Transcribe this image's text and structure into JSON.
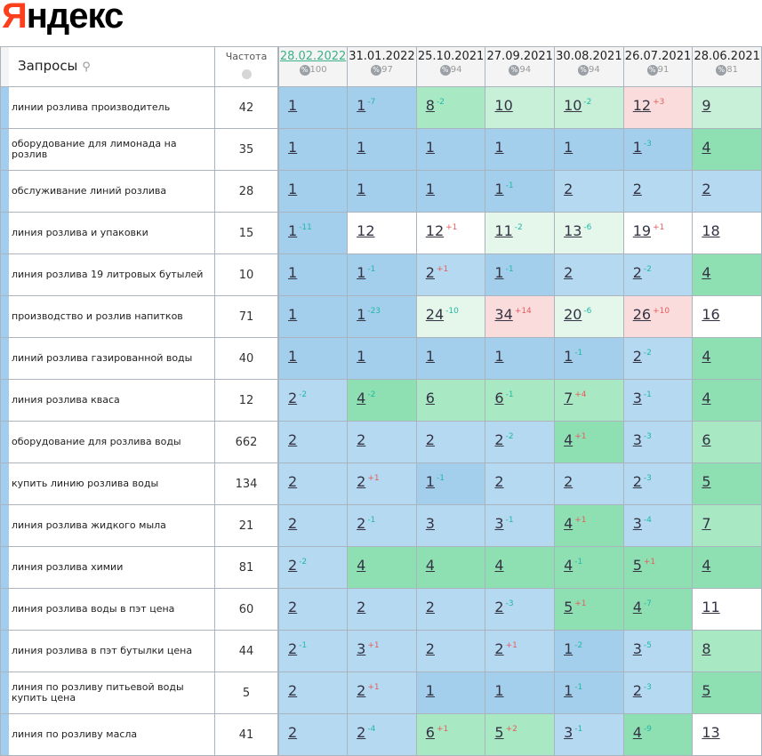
{
  "logo": "Яндекс",
  "header": {
    "queries_label": "Запросы",
    "freq_label": "Частота",
    "dates": [
      {
        "date": "28.02.2022",
        "visibility": "100",
        "current": true
      },
      {
        "date": "31.01.2022",
        "visibility": "97"
      },
      {
        "date": "25.10.2021",
        "visibility": "94"
      },
      {
        "date": "27.09.2021",
        "visibility": "94"
      },
      {
        "date": "30.08.2021",
        "visibility": "94"
      },
      {
        "date": "26.07.2021",
        "visibility": "91"
      },
      {
        "date": "28.06.2021",
        "visibility": "81"
      }
    ],
    "percent_icon": "%"
  },
  "colors": {
    "b1": "#a3cfec",
    "b2": "#b5d9f1",
    "g1": "#8ee0b3",
    "g2": "#a8e9c4",
    "g3": "#c8f0d9",
    "g4": "#e4f7ea",
    "r": "#fbdcdc",
    "w": "#ffffff",
    "improved": "#1fb8a6",
    "worsened": "#e85b5b"
  },
  "rows": [
    {
      "query": "линии розлива производитель",
      "freq": "42",
      "cells": [
        [
          "1",
          "",
          "b1"
        ],
        [
          "1",
          "-7",
          "b1"
        ],
        [
          "8",
          "-2",
          "g2"
        ],
        [
          "10",
          "",
          "g3"
        ],
        [
          "10",
          "-2",
          "g3"
        ],
        [
          "12",
          "+3",
          "r"
        ],
        [
          "9",
          "",
          "g3"
        ]
      ]
    },
    {
      "query": "оборудование для лимонада на розлив",
      "freq": "35",
      "cells": [
        [
          "1",
          "",
          "b1"
        ],
        [
          "1",
          "",
          "b1"
        ],
        [
          "1",
          "",
          "b1"
        ],
        [
          "1",
          "",
          "b1"
        ],
        [
          "1",
          "",
          "b1"
        ],
        [
          "1",
          "-3",
          "b1"
        ],
        [
          "4",
          "",
          "g1"
        ]
      ]
    },
    {
      "query": "обслуживание линий розлива",
      "freq": "28",
      "cells": [
        [
          "1",
          "",
          "b1"
        ],
        [
          "1",
          "",
          "b1"
        ],
        [
          "1",
          "",
          "b1"
        ],
        [
          "1",
          "-1",
          "b1"
        ],
        [
          "2",
          "",
          "b2"
        ],
        [
          "2",
          "",
          "b2"
        ],
        [
          "2",
          "",
          "b2"
        ]
      ]
    },
    {
      "query": "линия розлива и упаковки",
      "freq": "15",
      "cells": [
        [
          "1",
          "-11",
          "b1"
        ],
        [
          "12",
          "",
          "w"
        ],
        [
          "12",
          "+1",
          "w"
        ],
        [
          "11",
          "-2",
          "g4"
        ],
        [
          "13",
          "-6",
          "g4"
        ],
        [
          "19",
          "+1",
          "w"
        ],
        [
          "18",
          "",
          "w"
        ]
      ]
    },
    {
      "query": "линия розлива 19 литровых бутылей",
      "freq": "10",
      "cells": [
        [
          "1",
          "",
          "b1"
        ],
        [
          "1",
          "-1",
          "b1"
        ],
        [
          "2",
          "+1",
          "b2"
        ],
        [
          "1",
          "-1",
          "b1"
        ],
        [
          "2",
          "",
          "b2"
        ],
        [
          "2",
          "-2",
          "b2"
        ],
        [
          "4",
          "",
          "g1"
        ]
      ]
    },
    {
      "query": "производство и розлив напитков",
      "freq": "71",
      "cells": [
        [
          "1",
          "",
          "b1"
        ],
        [
          "1",
          "-23",
          "b1"
        ],
        [
          "24",
          "-10",
          "g4"
        ],
        [
          "34",
          "+14",
          "r"
        ],
        [
          "20",
          "-6",
          "g4"
        ],
        [
          "26",
          "+10",
          "r"
        ],
        [
          "16",
          "",
          "w"
        ]
      ]
    },
    {
      "query": "линий розлива газированной воды",
      "freq": "40",
      "cells": [
        [
          "1",
          "",
          "b1"
        ],
        [
          "1",
          "",
          "b1"
        ],
        [
          "1",
          "",
          "b1"
        ],
        [
          "1",
          "",
          "b1"
        ],
        [
          "1",
          "-1",
          "b1"
        ],
        [
          "2",
          "-2",
          "b2"
        ],
        [
          "4",
          "",
          "g1"
        ]
      ]
    },
    {
      "query": "линия розлива кваса",
      "freq": "12",
      "cells": [
        [
          "2",
          "-2",
          "b2"
        ],
        [
          "4",
          "-2",
          "g1"
        ],
        [
          "6",
          "",
          "g2"
        ],
        [
          "6",
          "-1",
          "g2"
        ],
        [
          "7",
          "+4",
          "g2"
        ],
        [
          "3",
          "-1",
          "b2"
        ],
        [
          "4",
          "",
          "g1"
        ]
      ]
    },
    {
      "query": "оборудование для розлива воды",
      "freq": "662",
      "cells": [
        [
          "2",
          "",
          "b2"
        ],
        [
          "2",
          "",
          "b2"
        ],
        [
          "2",
          "",
          "b2"
        ],
        [
          "2",
          "-2",
          "b2"
        ],
        [
          "4",
          "+1",
          "g1"
        ],
        [
          "3",
          "-3",
          "b2"
        ],
        [
          "6",
          "",
          "g2"
        ]
      ]
    },
    {
      "query": "купить линию розлива воды",
      "freq": "134",
      "cells": [
        [
          "2",
          "",
          "b2"
        ],
        [
          "2",
          "+1",
          "b2"
        ],
        [
          "1",
          "-1",
          "b1"
        ],
        [
          "2",
          "",
          "b2"
        ],
        [
          "2",
          "",
          "b2"
        ],
        [
          "2",
          "-3",
          "b2"
        ],
        [
          "5",
          "",
          "g1"
        ]
      ]
    },
    {
      "query": "линия розлива жидкого мыла",
      "freq": "21",
      "cells": [
        [
          "2",
          "",
          "b2"
        ],
        [
          "2",
          "-1",
          "b2"
        ],
        [
          "3",
          "",
          "b2"
        ],
        [
          "3",
          "-1",
          "b2"
        ],
        [
          "4",
          "+1",
          "g1"
        ],
        [
          "3",
          "-4",
          "b2"
        ],
        [
          "7",
          "",
          "g2"
        ]
      ]
    },
    {
      "query": "линия розлива химии",
      "freq": "81",
      "cells": [
        [
          "2",
          "-2",
          "b2"
        ],
        [
          "4",
          "",
          "g1"
        ],
        [
          "4",
          "",
          "g1"
        ],
        [
          "4",
          "",
          "g1"
        ],
        [
          "4",
          "-1",
          "g1"
        ],
        [
          "5",
          "+1",
          "g1"
        ],
        [
          "4",
          "",
          "g1"
        ]
      ]
    },
    {
      "query": "линия розлива воды в пэт цена",
      "freq": "60",
      "cells": [
        [
          "2",
          "",
          "b2"
        ],
        [
          "2",
          "",
          "b2"
        ],
        [
          "2",
          "",
          "b2"
        ],
        [
          "2",
          "-3",
          "b2"
        ],
        [
          "5",
          "+1",
          "g1"
        ],
        [
          "4",
          "-7",
          "g1"
        ],
        [
          "11",
          "",
          "w"
        ]
      ]
    },
    {
      "query": "линия розлива в пэт бутылки цена",
      "freq": "44",
      "cells": [
        [
          "2",
          "-1",
          "b2"
        ],
        [
          "3",
          "+1",
          "b2"
        ],
        [
          "2",
          "",
          "b2"
        ],
        [
          "2",
          "+1",
          "b2"
        ],
        [
          "1",
          "-2",
          "b1"
        ],
        [
          "3",
          "-5",
          "b2"
        ],
        [
          "8",
          "",
          "g2"
        ]
      ]
    },
    {
      "query": "линия по розливу питьевой воды купить цена",
      "freq": "5",
      "cells": [
        [
          "2",
          "",
          "b2"
        ],
        [
          "2",
          "+1",
          "b2"
        ],
        [
          "1",
          "",
          "b1"
        ],
        [
          "1",
          "",
          "b1"
        ],
        [
          "1",
          "-1",
          "b1"
        ],
        [
          "2",
          "-3",
          "b2"
        ],
        [
          "5",
          "",
          "g1"
        ]
      ]
    },
    {
      "query": "линия по розливу масла",
      "freq": "41",
      "cells": [
        [
          "2",
          "",
          "b2"
        ],
        [
          "2",
          "-4",
          "b2"
        ],
        [
          "6",
          "+1",
          "g2"
        ],
        [
          "5",
          "+2",
          "g2"
        ],
        [
          "3",
          "-1",
          "b2"
        ],
        [
          "4",
          "-9",
          "g1"
        ],
        [
          "13",
          "",
          "w"
        ]
      ]
    }
  ]
}
